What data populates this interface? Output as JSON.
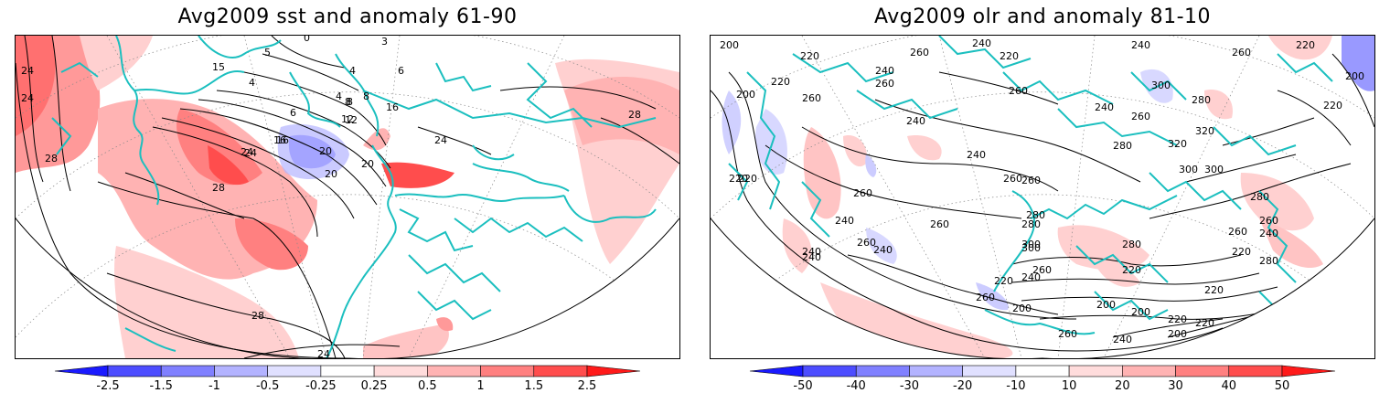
{
  "panels": [
    {
      "title": "Avg2009 sst and anomaly 61-90",
      "colorbar": {
        "labels": [
          "-2.5",
          "-1.5",
          "-1",
          "-0.5",
          "-0.25",
          "0.25",
          "0.5",
          "1",
          "1.5",
          "2.5"
        ],
        "colors": [
          "#1a1aff",
          "#4d4dff",
          "#8080ff",
          "#b3b3ff",
          "#e0e0ff",
          "#ffffff",
          "#ffdcdc",
          "#ffb3b3",
          "#ff8080",
          "#ff4d4d",
          "#ff1a1a"
        ]
      },
      "contour_labels": [
        "24",
        "28",
        "28",
        "28",
        "28",
        "24",
        "24",
        "20",
        "16",
        "12",
        "8",
        "4",
        "15",
        "5",
        "4",
        "6",
        "4",
        "8",
        "6",
        "16",
        "12",
        "8",
        "20",
        "20",
        "16",
        "24",
        "24",
        "24",
        "0",
        "3"
      ]
    },
    {
      "title": "Avg2009 olr and anomaly 81-10",
      "colorbar": {
        "labels": [
          "-50",
          "-40",
          "-30",
          "-20",
          "-10",
          "10",
          "20",
          "30",
          "40",
          "50"
        ],
        "colors": [
          "#1a1aff",
          "#4d4dff",
          "#8080ff",
          "#b3b3ff",
          "#e0e0ff",
          "#ffffff",
          "#ffdcdc",
          "#ffb3b3",
          "#ff8080",
          "#ff4d4d",
          "#ff1a1a"
        ]
      },
      "contour_labels": [
        "200",
        "220",
        "260",
        "200",
        "240",
        "260",
        "220",
        "240",
        "260",
        "220",
        "240",
        "260",
        "300",
        "200",
        "220",
        "260",
        "240",
        "280",
        "260",
        "240",
        "260",
        "280",
        "300",
        "240",
        "260",
        "280",
        "300",
        "320",
        "320",
        "300",
        "280",
        "260",
        "240",
        "220",
        "240",
        "220",
        "260",
        "240",
        "260",
        "280",
        "300",
        "260",
        "280",
        "220",
        "240",
        "260",
        "200",
        "220",
        "200",
        "220",
        "280",
        "260",
        "220",
        "240",
        "200",
        "240",
        "220",
        "200",
        "220",
        "260",
        "240",
        "220",
        "260"
      ]
    }
  ]
}
